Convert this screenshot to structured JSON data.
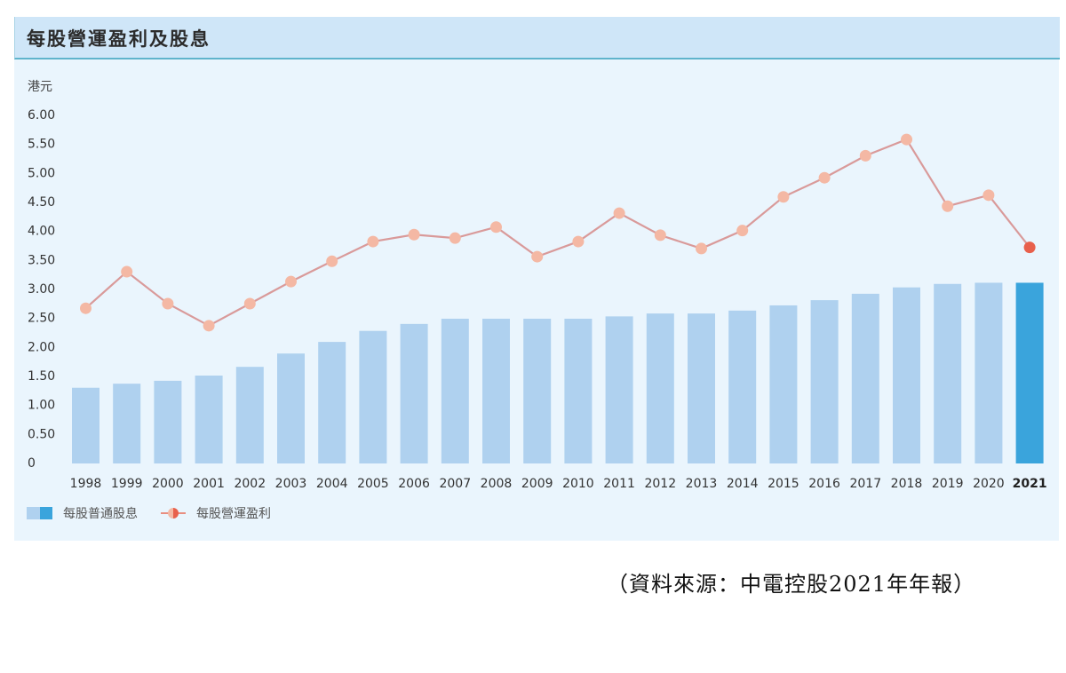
{
  "panel": {
    "title": "每股營運盈利及股息",
    "unit": "港元"
  },
  "legend": {
    "dividend_label": "每股普通股息",
    "earnings_label": "每股營運盈利"
  },
  "source_note": "（資料來源：中電控股2021年年報）",
  "colors": {
    "bar": "#afd1ef",
    "bar_highlight": "#3aa4dc",
    "line": "#d99a9a",
    "marker": "#f4b8a4",
    "marker_highlight": "#e8604c",
    "panel_bg": "#eaf5fd",
    "header_bg": "#cfe6f8",
    "header_border": "#5fb4cc"
  },
  "chart_data": {
    "type": "bar+line",
    "title": "每股營運盈利及股息",
    "ylabel": "港元",
    "xlabel": "",
    "ylim": [
      0,
      6.0
    ],
    "yticks": [
      "0",
      "0.50",
      "1.00",
      "1.50",
      "2.00",
      "2.50",
      "3.00",
      "3.50",
      "4.00",
      "4.50",
      "5.00",
      "5.50",
      "6.00"
    ],
    "categories": [
      "1998",
      "1999",
      "2000",
      "2001",
      "2002",
      "2003",
      "2004",
      "2005",
      "2006",
      "2007",
      "2008",
      "2009",
      "2010",
      "2011",
      "2012",
      "2013",
      "2014",
      "2015",
      "2016",
      "2017",
      "2018",
      "2019",
      "2020",
      "2021"
    ],
    "highlight_category": "2021",
    "series": [
      {
        "name": "每股普通股息",
        "type": "bar",
        "values": [
          1.29,
          1.36,
          1.41,
          1.5,
          1.65,
          1.88,
          2.08,
          2.27,
          2.39,
          2.48,
          2.48,
          2.48,
          2.48,
          2.52,
          2.57,
          2.57,
          2.62,
          2.71,
          2.8,
          2.91,
          3.02,
          3.08,
          3.1,
          3.1
        ]
      },
      {
        "name": "每股營運盈利",
        "type": "line",
        "values": [
          2.66,
          3.29,
          2.74,
          2.36,
          2.74,
          3.12,
          3.47,
          3.81,
          3.93,
          3.87,
          4.06,
          3.55,
          3.81,
          4.3,
          3.92,
          3.69,
          4.0,
          4.58,
          4.91,
          5.29,
          5.57,
          4.42,
          4.61,
          3.71
        ]
      }
    ],
    "grid": false,
    "legend_position": "bottom-left"
  }
}
